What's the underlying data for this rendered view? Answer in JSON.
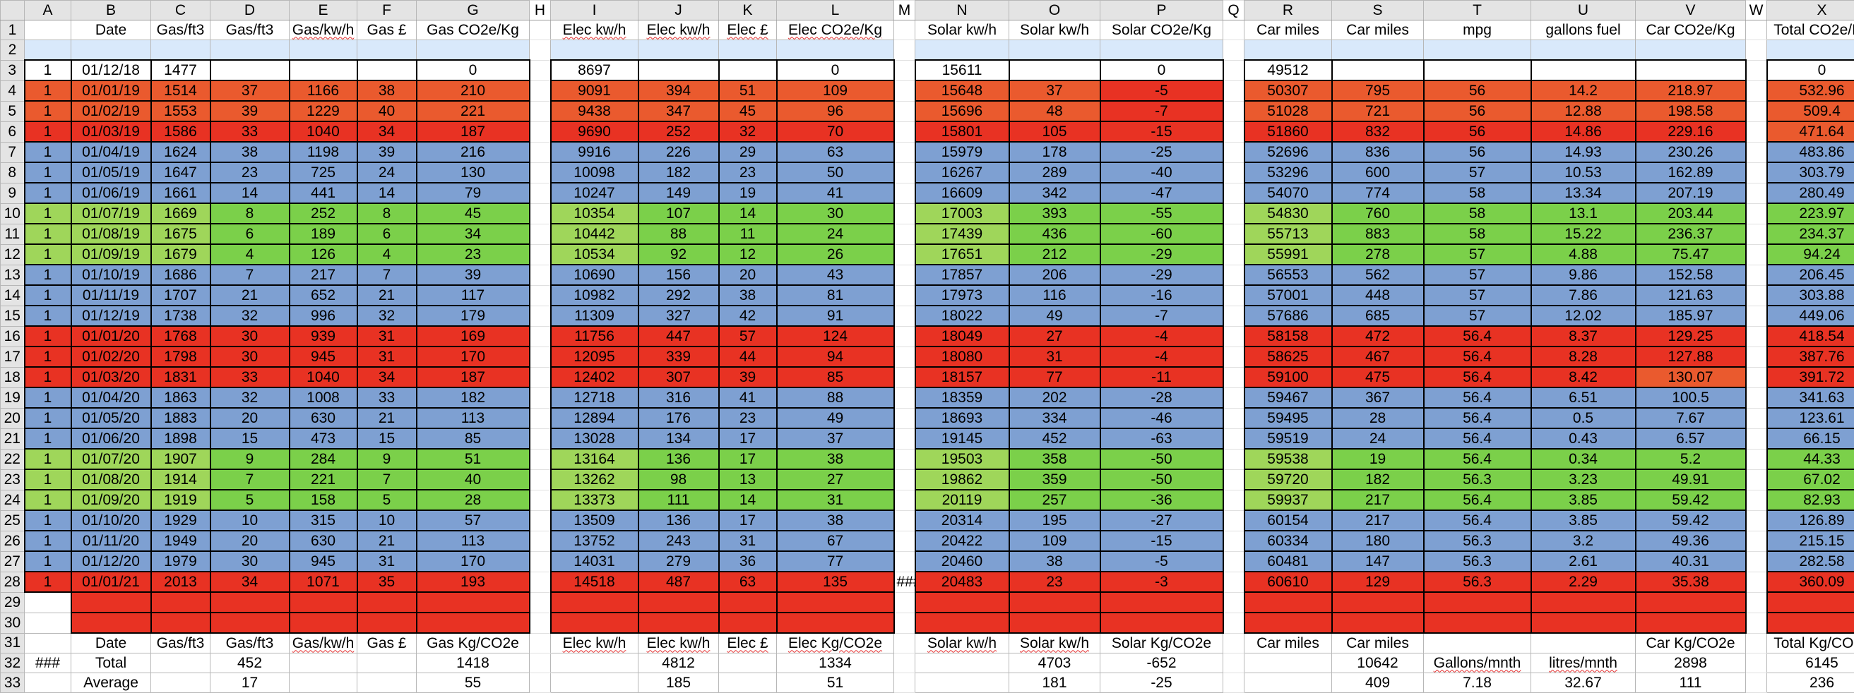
{
  "sheet": {
    "column_letters": [
      "A",
      "B",
      "C",
      "D",
      "E",
      "F",
      "G",
      "H",
      "I",
      "J",
      "K",
      "L",
      "M",
      "N",
      "O",
      "P",
      "Q",
      "R",
      "S",
      "T",
      "U",
      "V",
      "W",
      "X"
    ],
    "headers": {
      "date": "Date",
      "gas_ft3": "Gas/ft3",
      "gas_kwh": "Gas/kw/h",
      "gas_gbp": "Gas £",
      "gas_co2": "Gas CO2e/Kg",
      "elec_kwh": "Elec kw/h",
      "elec_gbp": "Elec £",
      "elec_co2": "Elec CO2e/Kg",
      "solar_kwh": "Solar kw/h",
      "solar_co2": "Solar CO2e/Kg",
      "car_miles": "Car miles",
      "mpg": "mpg",
      "gallons": "gallons fuel",
      "car_co2": "Car CO2e/Kg",
      "total_co2": "Total CO2e/Kg"
    },
    "footer": {
      "gas_co2": "Gas Kg/CO2e",
      "elec_co2": "Elec Kg/CO2e",
      "solar_co2": "Solar Kg/CO2e",
      "car_co2": "Car Kg/CO2e",
      "total_co2": "Total Kg/CO2e",
      "total_label": "Total",
      "average_label": "Average",
      "gallons_per_month": "Gallons/mnth",
      "litres_per_month": "litres/mnth",
      "overflow": "###",
      "totals": {
        "gas_ft3": "452",
        "gas_co2": "1418",
        "elec_kwh": "4812",
        "elec_co2": "1334",
        "solar_kwh": "4703",
        "solar_co2": "-652",
        "car_miles": "10642",
        "car_co2": "2898",
        "total_co2": "6145"
      },
      "averages": {
        "gas_ft3": "17",
        "gas_co2": "55",
        "elec_kwh": "185",
        "elec_co2": "51",
        "solar_kwh": "181",
        "solar_co2": "-25",
        "car_miles": "409",
        "gallons": "7.18",
        "litres": "32.67",
        "car_co2": "111",
        "total_co2": "236"
      }
    },
    "colors": {
      "orange": "#ea5a2e",
      "red": "#e83223",
      "blue": "#7ea0d2",
      "green": "#7bd04a",
      "light_green": "#9fd65a"
    },
    "rows": [
      {
        "n": 3,
        "a": "1",
        "date": "01/12/18",
        "c": "1477",
        "d": "",
        "e": "",
        "f": "",
        "g": "0",
        "i": "8697",
        "j": "",
        "k": "",
        "l": "0",
        "m": "",
        "n_": "15611",
        "o": "",
        "p": "0",
        "r": "49512",
        "s": "",
        "t": "",
        "u": "",
        "v": "",
        "x": "0",
        "color": "none"
      },
      {
        "n": 4,
        "a": "1",
        "date": "01/01/19",
        "c": "1514",
        "d": "37",
        "e": "1166",
        "f": "38",
        "g": "210",
        "i": "9091",
        "j": "394",
        "k": "51",
        "l": "109",
        "m": "",
        "n_": "15648",
        "o": "37",
        "p": "-5",
        "r": "50307",
        "s": "795",
        "t": "56",
        "u": "14.2",
        "v": "218.97",
        "x": "532.96",
        "color": "orange"
      },
      {
        "n": 5,
        "a": "1",
        "date": "01/02/19",
        "c": "1553",
        "d": "39",
        "e": "1229",
        "f": "40",
        "g": "221",
        "i": "9438",
        "j": "347",
        "k": "45",
        "l": "96",
        "m": "",
        "n_": "15696",
        "o": "48",
        "p": "-7",
        "r": "51028",
        "s": "721",
        "t": "56",
        "u": "12.88",
        "v": "198.58",
        "x": "509.4",
        "color": "orange"
      },
      {
        "n": 6,
        "a": "1",
        "date": "01/03/19",
        "c": "1586",
        "d": "33",
        "e": "1040",
        "f": "34",
        "g": "187",
        "i": "9690",
        "j": "252",
        "k": "32",
        "l": "70",
        "m": "",
        "n_": "15801",
        "o": "105",
        "p": "-15",
        "r": "51860",
        "s": "832",
        "t": "56",
        "u": "14.86",
        "v": "229.16",
        "x": "471.64",
        "color": "red"
      },
      {
        "n": 7,
        "a": "1",
        "date": "01/04/19",
        "c": "1624",
        "d": "38",
        "e": "1198",
        "f": "39",
        "g": "216",
        "i": "9916",
        "j": "226",
        "k": "29",
        "l": "63",
        "m": "",
        "n_": "15979",
        "o": "178",
        "p": "-25",
        "r": "52696",
        "s": "836",
        "t": "56",
        "u": "14.93",
        "v": "230.26",
        "x": "483.86",
        "color": "blue"
      },
      {
        "n": 8,
        "a": "1",
        "date": "01/05/19",
        "c": "1647",
        "d": "23",
        "e": "725",
        "f": "24",
        "g": "130",
        "i": "10098",
        "j": "182",
        "k": "23",
        "l": "50",
        "m": "",
        "n_": "16267",
        "o": "289",
        "p": "-40",
        "r": "53296",
        "s": "600",
        "t": "57",
        "u": "10.53",
        "v": "162.89",
        "x": "303.79",
        "color": "blue"
      },
      {
        "n": 9,
        "a": "1",
        "date": "01/06/19",
        "c": "1661",
        "d": "14",
        "e": "441",
        "f": "14",
        "g": "79",
        "i": "10247",
        "j": "149",
        "k": "19",
        "l": "41",
        "m": "",
        "n_": "16609",
        "o": "342",
        "p": "-47",
        "r": "54070",
        "s": "774",
        "t": "58",
        "u": "13.34",
        "v": "207.19",
        "x": "280.49",
        "color": "blue"
      },
      {
        "n": 10,
        "a": "1",
        "date": "01/07/19",
        "c": "1669",
        "d": "8",
        "e": "252",
        "f": "8",
        "g": "45",
        "i": "10354",
        "j": "107",
        "k": "14",
        "l": "30",
        "m": "",
        "n_": "17003",
        "o": "393",
        "p": "-55",
        "r": "54830",
        "s": "760",
        "t": "58",
        "u": "13.1",
        "v": "203.44",
        "x": "223.97",
        "color": "green"
      },
      {
        "n": 11,
        "a": "1",
        "date": "01/08/19",
        "c": "1675",
        "d": "6",
        "e": "189",
        "f": "6",
        "g": "34",
        "i": "10442",
        "j": "88",
        "k": "11",
        "l": "24",
        "m": "",
        "n_": "17439",
        "o": "436",
        "p": "-60",
        "r": "55713",
        "s": "883",
        "t": "58",
        "u": "15.22",
        "v": "236.37",
        "x": "234.37",
        "color": "green"
      },
      {
        "n": 12,
        "a": "1",
        "date": "01/09/19",
        "c": "1679",
        "d": "4",
        "e": "126",
        "f": "4",
        "g": "23",
        "i": "10534",
        "j": "92",
        "k": "12",
        "l": "26",
        "m": "",
        "n_": "17651",
        "o": "212",
        "p": "-29",
        "r": "55991",
        "s": "278",
        "t": "57",
        "u": "4.88",
        "v": "75.47",
        "x": "94.24",
        "color": "green"
      },
      {
        "n": 13,
        "a": "1",
        "date": "01/10/19",
        "c": "1686",
        "d": "7",
        "e": "217",
        "f": "7",
        "g": "39",
        "i": "10690",
        "j": "156",
        "k": "20",
        "l": "43",
        "m": "",
        "n_": "17857",
        "o": "206",
        "p": "-29",
        "r": "56553",
        "s": "562",
        "t": "57",
        "u": "9.86",
        "v": "152.58",
        "x": "206.45",
        "color": "blue"
      },
      {
        "n": 14,
        "a": "1",
        "date": "01/11/19",
        "c": "1707",
        "d": "21",
        "e": "652",
        "f": "21",
        "g": "117",
        "i": "10982",
        "j": "292",
        "k": "38",
        "l": "81",
        "m": "",
        "n_": "17973",
        "o": "116",
        "p": "-16",
        "r": "57001",
        "s": "448",
        "t": "57",
        "u": "7.86",
        "v": "121.63",
        "x": "303.88",
        "color": "blue"
      },
      {
        "n": 15,
        "a": "1",
        "date": "01/12/19",
        "c": "1738",
        "d": "32",
        "e": "996",
        "f": "32",
        "g": "179",
        "i": "11309",
        "j": "327",
        "k": "42",
        "l": "91",
        "m": "",
        "n_": "18022",
        "o": "49",
        "p": "-7",
        "r": "57686",
        "s": "685",
        "t": "57",
        "u": "12.02",
        "v": "185.97",
        "x": "449.06",
        "color": "blue"
      },
      {
        "n": 16,
        "a": "1",
        "date": "01/01/20",
        "c": "1768",
        "d": "30",
        "e": "939",
        "f": "31",
        "g": "169",
        "i": "11756",
        "j": "447",
        "k": "57",
        "l": "124",
        "m": "",
        "n_": "18049",
        "o": "27",
        "p": "-4",
        "r": "58158",
        "s": "472",
        "t": "56.4",
        "u": "8.37",
        "v": "129.25",
        "x": "418.54",
        "color": "red"
      },
      {
        "n": 17,
        "a": "1",
        "date": "01/02/20",
        "c": "1798",
        "d": "30",
        "e": "945",
        "f": "31",
        "g": "170",
        "i": "12095",
        "j": "339",
        "k": "44",
        "l": "94",
        "m": "",
        "n_": "18080",
        "o": "31",
        "p": "-4",
        "r": "58625",
        "s": "467",
        "t": "56.4",
        "u": "8.28",
        "v": "127.88",
        "x": "387.76",
        "color": "red"
      },
      {
        "n": 18,
        "a": "1",
        "date": "01/03/20",
        "c": "1831",
        "d": "33",
        "e": "1040",
        "f": "34",
        "g": "187",
        "i": "12402",
        "j": "307",
        "k": "39",
        "l": "85",
        "m": "",
        "n_": "18157",
        "o": "77",
        "p": "-11",
        "r": "59100",
        "s": "475",
        "t": "56.4",
        "u": "8.42",
        "v": "130.07",
        "x": "391.72",
        "color": "red"
      },
      {
        "n": 19,
        "a": "1",
        "date": "01/04/20",
        "c": "1863",
        "d": "32",
        "e": "1008",
        "f": "33",
        "g": "182",
        "i": "12718",
        "j": "316",
        "k": "41",
        "l": "88",
        "m": "",
        "n_": "18359",
        "o": "202",
        "p": "-28",
        "r": "59467",
        "s": "367",
        "t": "56.4",
        "u": "6.51",
        "v": "100.5",
        "x": "341.63",
        "color": "blue"
      },
      {
        "n": 20,
        "a": "1",
        "date": "01/05/20",
        "c": "1883",
        "d": "20",
        "e": "630",
        "f": "21",
        "g": "113",
        "i": "12894",
        "j": "176",
        "k": "23",
        "l": "49",
        "m": "",
        "n_": "18693",
        "o": "334",
        "p": "-46",
        "r": "59495",
        "s": "28",
        "t": "56.4",
        "u": "0.5",
        "v": "7.67",
        "x": "123.61",
        "color": "blue"
      },
      {
        "n": 21,
        "a": "1",
        "date": "01/06/20",
        "c": "1898",
        "d": "15",
        "e": "473",
        "f": "15",
        "g": "85",
        "i": "13028",
        "j": "134",
        "k": "17",
        "l": "37",
        "m": "",
        "n_": "19145",
        "o": "452",
        "p": "-63",
        "r": "59519",
        "s": "24",
        "t": "56.4",
        "u": "0.43",
        "v": "6.57",
        "x": "66.15",
        "color": "blue"
      },
      {
        "n": 22,
        "a": "1",
        "date": "01/07/20",
        "c": "1907",
        "d": "9",
        "e": "284",
        "f": "9",
        "g": "51",
        "i": "13164",
        "j": "136",
        "k": "17",
        "l": "38",
        "m": "",
        "n_": "19503",
        "o": "358",
        "p": "-50",
        "r": "59538",
        "s": "19",
        "t": "56.4",
        "u": "0.34",
        "v": "5.2",
        "x": "44.33",
        "color": "green"
      },
      {
        "n": 23,
        "a": "1",
        "date": "01/08/20",
        "c": "1914",
        "d": "7",
        "e": "221",
        "f": "7",
        "g": "40",
        "i": "13262",
        "j": "98",
        "k": "13",
        "l": "27",
        "m": "",
        "n_": "19862",
        "o": "359",
        "p": "-50",
        "r": "59720",
        "s": "182",
        "t": "56.3",
        "u": "3.23",
        "v": "49.91",
        "x": "67.02",
        "color": "green"
      },
      {
        "n": 24,
        "a": "1",
        "date": "01/09/20",
        "c": "1919",
        "d": "5",
        "e": "158",
        "f": "5",
        "g": "28",
        "i": "13373",
        "j": "111",
        "k": "14",
        "l": "31",
        "m": "",
        "n_": "20119",
        "o": "257",
        "p": "-36",
        "r": "59937",
        "s": "217",
        "t": "56.4",
        "u": "3.85",
        "v": "59.42",
        "x": "82.93",
        "color": "green"
      },
      {
        "n": 25,
        "a": "1",
        "date": "01/10/20",
        "c": "1929",
        "d": "10",
        "e": "315",
        "f": "10",
        "g": "57",
        "i": "13509",
        "j": "136",
        "k": "17",
        "l": "38",
        "m": "",
        "n_": "20314",
        "o": "195",
        "p": "-27",
        "r": "60154",
        "s": "217",
        "t": "56.4",
        "u": "3.85",
        "v": "59.42",
        "x": "126.89",
        "color": "blue"
      },
      {
        "n": 26,
        "a": "1",
        "date": "01/11/20",
        "c": "1949",
        "d": "20",
        "e": "630",
        "f": "21",
        "g": "113",
        "i": "13752",
        "j": "243",
        "k": "31",
        "l": "67",
        "m": "",
        "n_": "20422",
        "o": "109",
        "p": "-15",
        "r": "60334",
        "s": "180",
        "t": "56.3",
        "u": "3.2",
        "v": "49.36",
        "x": "215.15",
        "color": "blue"
      },
      {
        "n": 27,
        "a": "1",
        "date": "01/12/20",
        "c": "1979",
        "d": "30",
        "e": "945",
        "f": "31",
        "g": "170",
        "i": "14031",
        "j": "279",
        "k": "36",
        "l": "77",
        "m": "",
        "n_": "20460",
        "o": "38",
        "p": "-5",
        "r": "60481",
        "s": "147",
        "t": "56.3",
        "u": "2.61",
        "v": "40.31",
        "x": "282.58",
        "color": "blue"
      },
      {
        "n": 28,
        "a": "1",
        "date": "01/01/21",
        "c": "2013",
        "d": "34",
        "e": "1071",
        "f": "35",
        "g": "193",
        "i": "14518",
        "j": "487",
        "k": "63",
        "l": "135",
        "m": "###",
        "n_": "20483",
        "o": "23",
        "p": "-3",
        "r": "60610",
        "s": "129",
        "t": "56.3",
        "u": "2.29",
        "v": "35.38",
        "x": "360.09",
        "color": "red"
      }
    ]
  }
}
